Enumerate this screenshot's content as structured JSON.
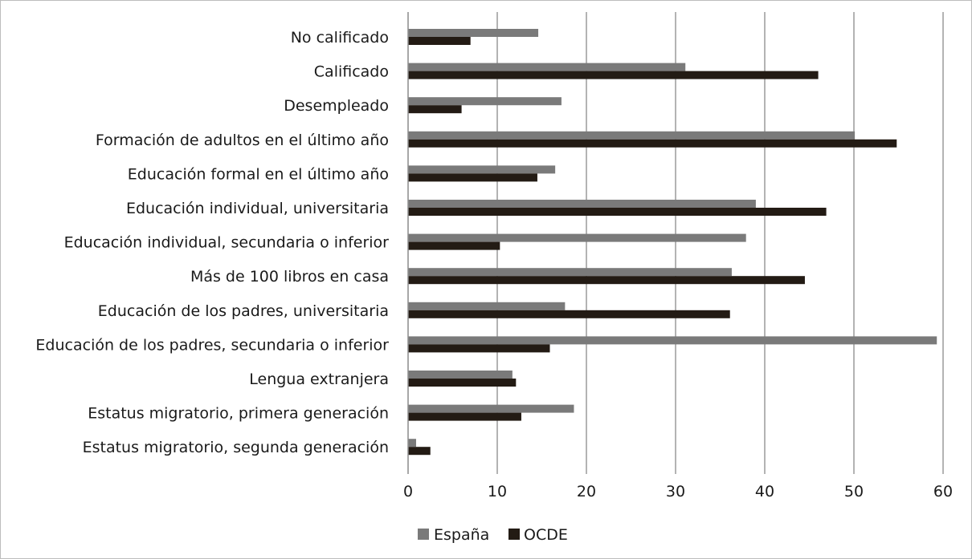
{
  "chart_data": {
    "type": "bar",
    "orientation": "horizontal",
    "categories": [
      "No calificado",
      "Calificado",
      "Desempleado",
      "Formación de adultos en el último año",
      "Educación formal en el último año",
      "Educación individual, universitaria",
      "Educación individual, secundaria o inferior",
      "Más de 100 libros en casa",
      "Educación de los padres, universitaria",
      "Educación de los padres, secundaria o inferior",
      "Lengua extranjera",
      "Estatus migratorio, primera generación",
      "Estatus migratorio, segunda generación"
    ],
    "series": [
      {
        "name": "España",
        "color": "#7a7a7a",
        "values": [
          14.6,
          31.1,
          17.2,
          50.1,
          16.5,
          39.0,
          37.9,
          36.3,
          17.6,
          59.3,
          11.7,
          18.6,
          0.9
        ]
      },
      {
        "name": "OCDE",
        "color": "#231b14",
        "values": [
          7.0,
          46.0,
          6.0,
          54.8,
          14.5,
          46.9,
          10.3,
          44.5,
          36.1,
          15.9,
          12.1,
          12.7,
          2.5
        ]
      }
    ],
    "xlim": [
      0,
      60
    ],
    "xticks": [
      "0",
      "10",
      "20",
      "30",
      "40",
      "50",
      "60"
    ],
    "xlabel": "",
    "ylabel": "",
    "title": "",
    "grid": "vertical",
    "gridColor": "#b3b3b3",
    "legend": {
      "position": "bottom"
    }
  }
}
